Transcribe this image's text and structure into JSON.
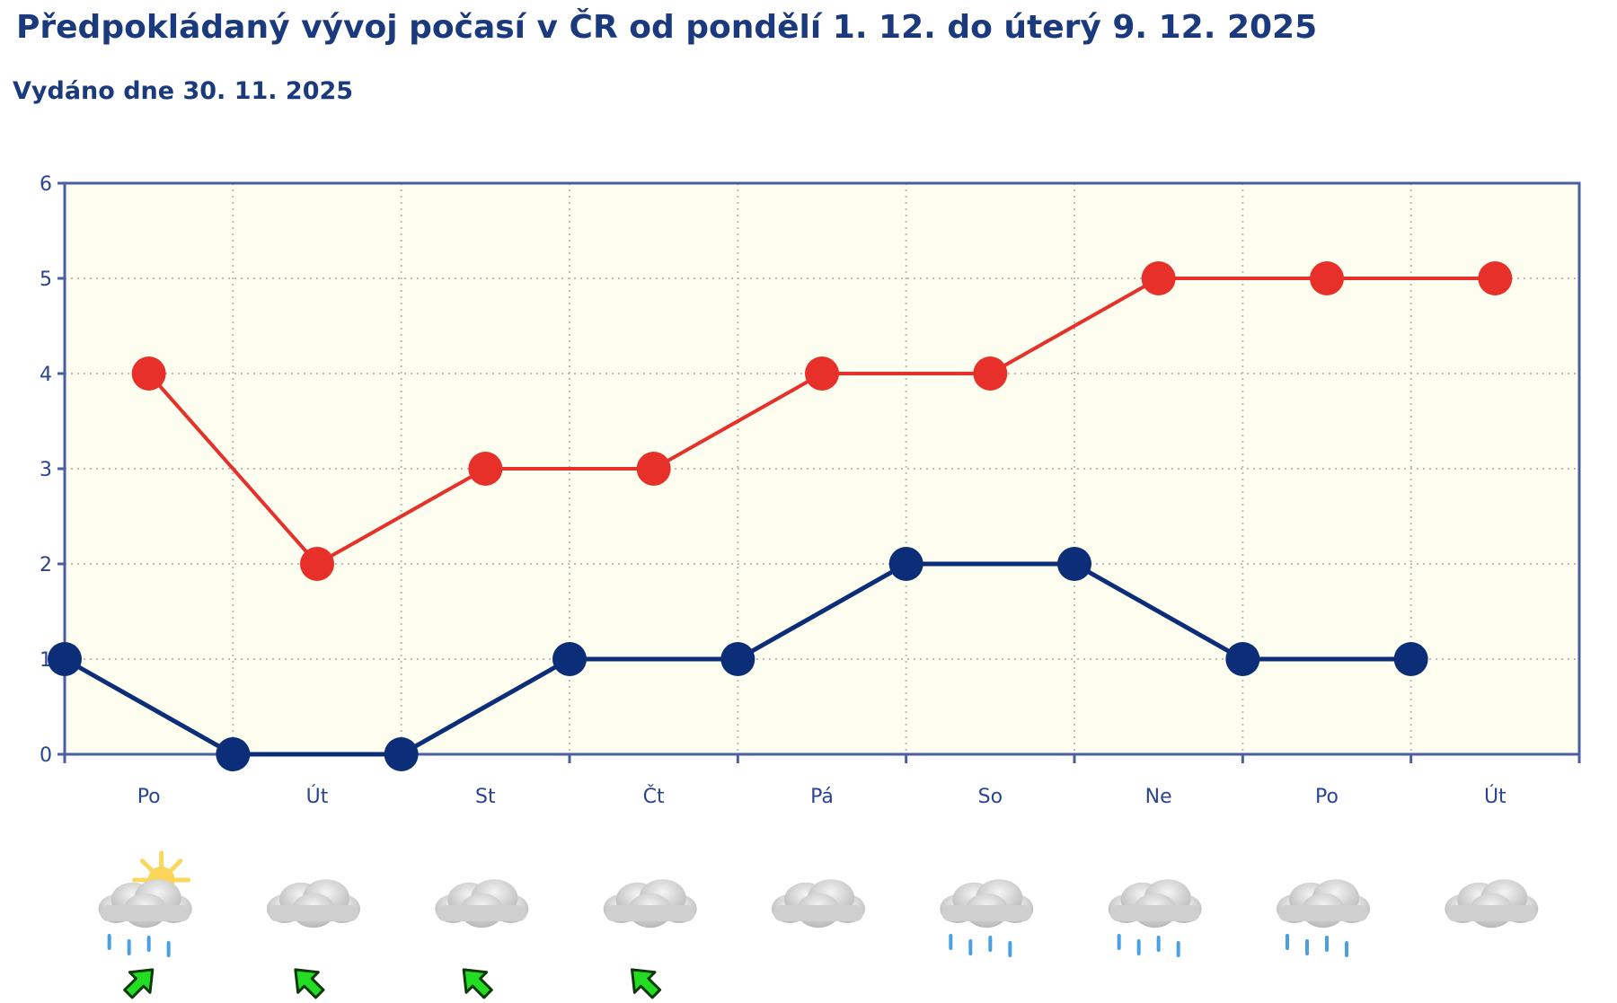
{
  "header": {
    "title": "Předpokládaný vývoj počasí v ČR od pondělí 1. 12. do úterý 9. 12. 2025",
    "subtitle": "Vydáno dne 30. 11. 2025"
  },
  "chart_data": {
    "type": "line",
    "title": "Předpokládaný vývoj počasí v ČR od pondělí 1. 12. do úterý 9. 12. 2025",
    "subtitle": "Vydáno dne 30. 11. 2025",
    "categories": [
      "Po",
      "Út",
      "St",
      "Čt",
      "Pá",
      "So",
      "Ne",
      "Po",
      "Út"
    ],
    "ylim": [
      0,
      6
    ],
    "yticks": [
      0,
      1,
      2,
      3,
      4,
      5,
      6
    ],
    "grid": true,
    "series": [
      {
        "color": "#e8302a",
        "position": "midday",
        "values": [
          4,
          2,
          3,
          3,
          4,
          4,
          5,
          5,
          5
        ]
      },
      {
        "color": "#0c2d78",
        "position": "day-boundary",
        "values": [
          1,
          0,
          0,
          1,
          1,
          2,
          2,
          1,
          1
        ]
      }
    ],
    "plot_background": "#fefef0",
    "axis_color": "#4a5fa0"
  },
  "weather_icons": [
    {
      "icon": "partly-sunny-rain-icon",
      "wind": "wind-arrow-northeast-icon"
    },
    {
      "icon": "cloud-icon",
      "wind": "wind-arrow-northwest-icon"
    },
    {
      "icon": "cloud-icon",
      "wind": "wind-arrow-northwest-icon"
    },
    {
      "icon": "cloud-icon",
      "wind": "wind-arrow-northwest-icon"
    },
    {
      "icon": "cloud-icon",
      "wind": null
    },
    {
      "icon": "cloud-rain-icon",
      "wind": null
    },
    {
      "icon": "cloud-rain-icon",
      "wind": null
    },
    {
      "icon": "cloud-rain-icon",
      "wind": null
    },
    {
      "icon": "cloud-icon",
      "wind": null
    }
  ]
}
